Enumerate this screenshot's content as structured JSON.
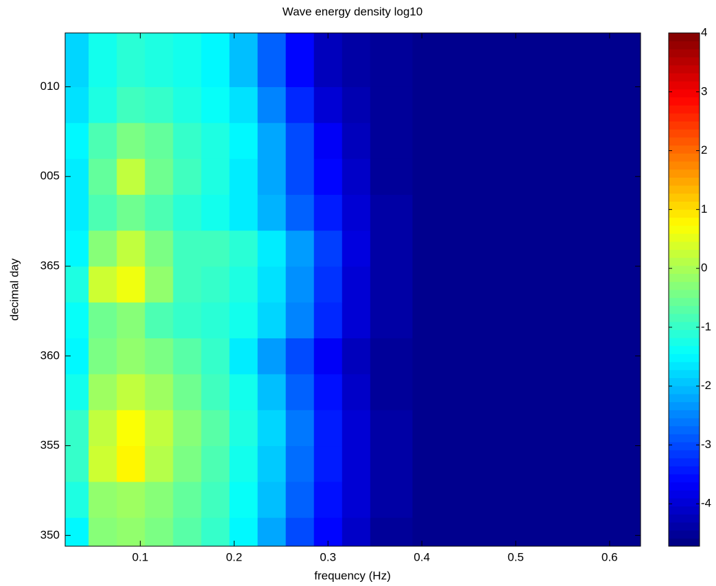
{
  "chart_data": {
    "type": "contour",
    "title": "Wave energy density log10",
    "x_label": "frequency (Hz)",
    "y_label": "decimal day",
    "xlim": [
      0.02,
      0.633
    ],
    "xticks": [
      0.1,
      0.2,
      0.3,
      0.4,
      0.5,
      0.6
    ],
    "ylim": [
      349.4,
      378
    ],
    "yticks": [
      350,
      355,
      360,
      365,
      {
        "value": 370,
        "label": "005"
      },
      {
        "value": 375,
        "label": "010"
      }
    ],
    "clim": [
      -4.72,
      4
    ],
    "cticks": [
      -4,
      -3,
      -2,
      -1,
      0,
      1,
      2,
      3,
      4
    ],
    "colormap": "jet",
    "x": [
      0.03,
      0.06,
      0.09,
      0.12,
      0.15,
      0.18,
      0.21,
      0.24,
      0.27,
      0.3,
      0.33,
      0.36,
      0.42,
      0.5,
      0.58
    ],
    "y": [
      350,
      352,
      354,
      356,
      358,
      360,
      362,
      364,
      366,
      368,
      370,
      372,
      374,
      376
    ],
    "z": [
      [
        -1.5,
        -0.3,
        -0.2,
        -0.4,
        -0.7,
        -1.0,
        -1.5,
        -2.2,
        -3.0,
        -3.6,
        -4.1,
        -4.5,
        -4.6,
        -4.6,
        -4.6
      ],
      [
        -1.2,
        -0.2,
        -0.1,
        -0.3,
        -0.6,
        -0.9,
        -1.4,
        -2.0,
        -2.8,
        -3.5,
        -4.0,
        -4.4,
        -4.6,
        -4.6,
        -4.6
      ],
      [
        -1.0,
        0.3,
        0.8,
        0.1,
        -0.4,
        -0.8,
        -1.3,
        -1.9,
        -2.7,
        -3.4,
        -4.0,
        -4.4,
        -4.6,
        -4.6,
        -4.6
      ],
      [
        -1.0,
        0.2,
        0.7,
        0.2,
        -0.3,
        -0.7,
        -1.2,
        -1.8,
        -2.6,
        -3.4,
        -4.0,
        -4.4,
        -4.6,
        -4.6,
        -4.6
      ],
      [
        -1.3,
        -0.1,
        0.2,
        -0.1,
        -0.5,
        -0.9,
        -1.3,
        -2.0,
        -2.8,
        -3.5,
        -4.1,
        -4.5,
        -4.6,
        -4.6,
        -4.6
      ],
      [
        -1.5,
        -0.4,
        -0.2,
        -0.4,
        -0.7,
        -1.0,
        -1.6,
        -2.3,
        -3.0,
        -3.7,
        -4.2,
        -4.5,
        -4.6,
        -4.6,
        -4.6
      ],
      [
        -1.4,
        -0.5,
        -0.3,
        -0.8,
        -1.0,
        -1.1,
        -1.3,
        -1.8,
        -2.5,
        -3.3,
        -4.0,
        -4.4,
        -4.6,
        -4.6,
        -4.6
      ],
      [
        -1.2,
        0.3,
        0.6,
        -0.2,
        -0.9,
        -1.0,
        -1.2,
        -1.7,
        -2.4,
        -3.2,
        -4.0,
        -4.4,
        -4.6,
        -4.6,
        -4.6
      ],
      [
        -1.5,
        -0.3,
        0.2,
        -0.4,
        -0.9,
        -0.9,
        -1.1,
        -1.6,
        -2.3,
        -3.1,
        -3.9,
        -4.4,
        -4.6,
        -4.6,
        -4.6
      ],
      [
        -1.6,
        -0.8,
        -0.5,
        -0.8,
        -1.1,
        -1.3,
        -1.6,
        -2.1,
        -2.8,
        -3.4,
        -4.0,
        -4.4,
        -4.6,
        -4.6,
        -4.6
      ],
      [
        -1.6,
        -0.6,
        0.2,
        -0.5,
        -0.9,
        -1.2,
        -1.6,
        -2.2,
        -3.0,
        -3.6,
        -4.1,
        -4.5,
        -4.6,
        -4.6,
        -4.6
      ],
      [
        -1.5,
        -0.8,
        -0.4,
        -0.6,
        -1.0,
        -1.2,
        -1.5,
        -2.2,
        -3.0,
        -3.7,
        -4.2,
        -4.5,
        -4.6,
        -4.6,
        -4.6
      ],
      [
        -1.7,
        -1.2,
        -0.9,
        -1.0,
        -1.2,
        -1.4,
        -1.7,
        -2.5,
        -3.3,
        -4.0,
        -4.3,
        -4.5,
        -4.6,
        -4.6,
        -4.6
      ],
      [
        -1.8,
        -1.3,
        -1.1,
        -1.2,
        -1.3,
        -1.5,
        -2.0,
        -2.8,
        -3.6,
        -4.2,
        -4.4,
        -4.5,
        -4.6,
        -4.6,
        -4.6
      ]
    ]
  }
}
